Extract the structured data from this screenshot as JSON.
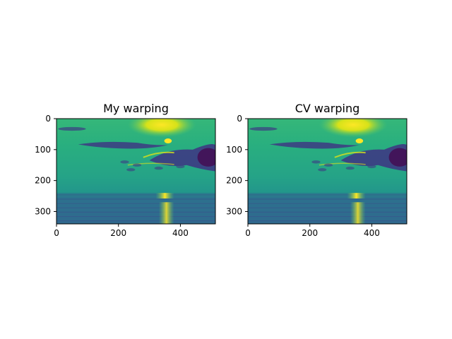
{
  "chart_data": [
    {
      "type": "heatmap",
      "title": "My warping",
      "image_shape": [
        340,
        513
      ],
      "colormap": "viridis",
      "xticks": [
        0,
        200,
        400
      ],
      "yticks": [
        0,
        100,
        200,
        300
      ],
      "xlim": [
        0,
        513
      ],
      "ylim": [
        340,
        0
      ],
      "grid": false,
      "scene": "sunset over sea: bright sun near top center, dark clouds at right, sun reflection on water"
    },
    {
      "type": "heatmap",
      "title": "CV warping",
      "image_shape": [
        340,
        513
      ],
      "colormap": "viridis",
      "xticks": [
        0,
        200,
        400
      ],
      "yticks": [
        0,
        100,
        200,
        300
      ],
      "xlim": [
        0,
        513
      ],
      "ylim": [
        340,
        0
      ],
      "grid": false,
      "scene": "sunset over sea: bright sun near top center, dark clouds at right, sun reflection on water"
    }
  ],
  "colors": {
    "sky": "#2b9c88",
    "sky_light": "#52c272",
    "sun": "#fde725",
    "cloud": "#3d3a83",
    "cloud_dark": "#440d54",
    "sea": "#21908c",
    "sea_dark": "#2f6b8e",
    "glint": "#d9e11a"
  }
}
